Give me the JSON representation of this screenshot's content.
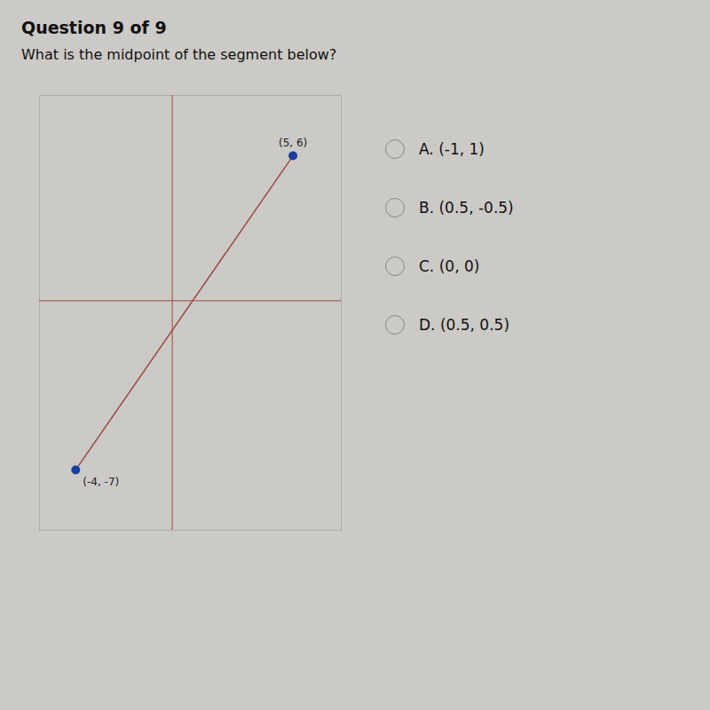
{
  "chart_data": {
    "type": "line",
    "title": "Question 9 of 9",
    "subtitle": "What is the midpoint of the segment below?",
    "xlim": [
      -5.5,
      7.0
    ],
    "ylim": [
      -9.5,
      8.5
    ],
    "tick_labels": false,
    "grid": false,
    "series": [
      {
        "type": "line",
        "color": "#9b4a45",
        "x": [
          -4,
          5
        ],
        "values": [
          -7,
          6
        ]
      },
      {
        "type": "scatter",
        "color": "#1a3fa0",
        "marker": "circle",
        "x": [
          -4,
          5
        ],
        "values": [
          -7,
          6
        ]
      }
    ],
    "annotations": [
      {
        "text": "(-4, -7)",
        "x": -4,
        "y": -7
      },
      {
        "text": "(5, 6)",
        "x": 5,
        "y": 6
      },
      {
        "text": "A. (-1, 1)"
      },
      {
        "text": "B. (0.5, -0.5)"
      },
      {
        "text": "C. (0, 0)"
      },
      {
        "text": "D. (0.5, 0.5)"
      }
    ]
  }
}
